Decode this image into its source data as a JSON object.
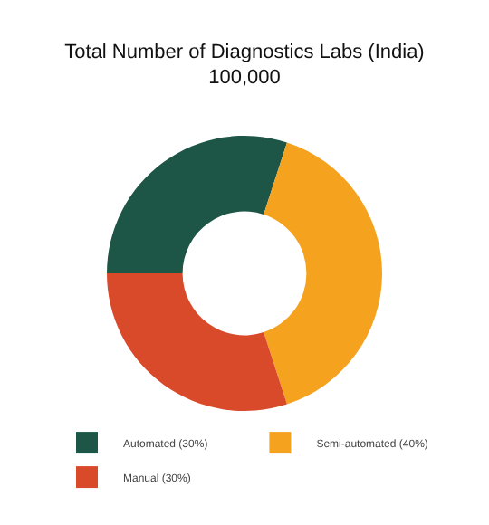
{
  "chart_data": {
    "type": "donut",
    "title": "Total Number of Diagnostics Labs (India)",
    "subtitle": "100,000",
    "categories": [
      "Automated (30%)",
      "Semi-automated (40%)",
      "Manual (30%)"
    ],
    "values": [
      30,
      40,
      30
    ],
    "colors": [
      "#1d5646",
      "#f5a21f",
      "#d94a2b"
    ],
    "legend": "bottom"
  }
}
